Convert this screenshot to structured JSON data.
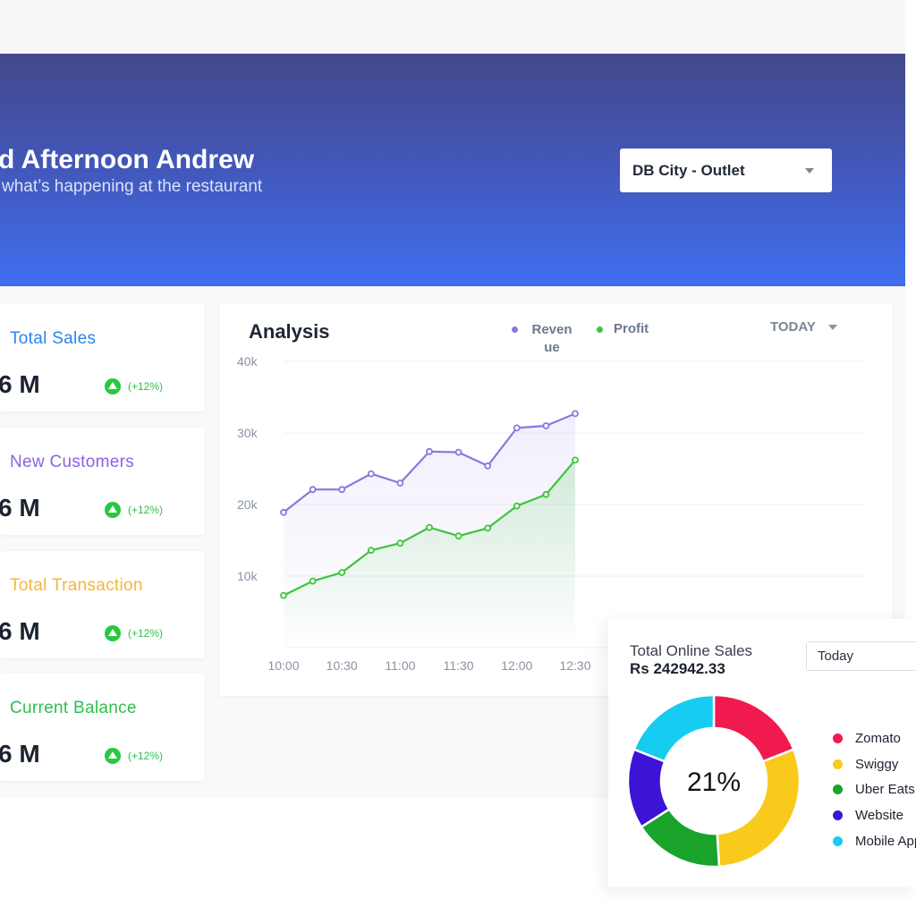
{
  "header": {
    "greeting": "d Afternoon Andrew",
    "subtitle": "what’s happening at the restaurant",
    "outlet_select": {
      "value": "DB City - Outlet"
    }
  },
  "stats": [
    {
      "label": "Total Sales",
      "value": "6 M",
      "change": "(+12%)",
      "color": "#2c82f0"
    },
    {
      "label": "New Customers",
      "value": "6 M",
      "change": "(+12%)",
      "color": "#8a63e0"
    },
    {
      "label": "Total Transaction",
      "value": "6 M",
      "change": "(+12%)",
      "color": "#f6b63d"
    },
    {
      "label": "Current Balance",
      "value": "6 M",
      "change": "(+12%)",
      "color": "#2cc04b"
    }
  ],
  "analysis": {
    "title": "Analysis",
    "legend": {
      "revenue": "Revenue",
      "profit": "Profit"
    },
    "range_select": "TODAY"
  },
  "chart_data": [
    {
      "type": "line",
      "title": "Analysis",
      "x": [
        "10:00",
        "10:15",
        "10:30",
        "10:45",
        "11:00",
        "11:15",
        "11:30",
        "11:45",
        "12:00",
        "12:15",
        "12:30"
      ],
      "x_tick_labels": [
        "10:00",
        "10:30",
        "11:00",
        "11:30",
        "12:00",
        "12:30"
      ],
      "y_tick_labels": [
        "10k",
        "20k",
        "30k",
        "40k"
      ],
      "ylim": [
        0,
        40000
      ],
      "grid": true,
      "legend_position": "top",
      "series": [
        {
          "name": "Revenue",
          "color": "#8a78e0",
          "values": [
            18900,
            22100,
            22100,
            24300,
            23000,
            27400,
            27300,
            25400,
            30700,
            31000,
            32700
          ]
        },
        {
          "name": "Profit",
          "color": "#3cc53c",
          "values": [
            7300,
            9300,
            10500,
            13600,
            14600,
            16800,
            15600,
            16700,
            19800,
            21400,
            26200
          ]
        }
      ]
    },
    {
      "type": "pie",
      "title": "Total Online Sales",
      "center_label": "21%",
      "legend_position": "right",
      "categories": [
        "Zomato",
        "Swiggy",
        "Uber Eats",
        "Website",
        "Mobile App"
      ],
      "values": [
        19,
        30,
        17,
        15,
        19
      ],
      "colors": [
        "#f01a4e",
        "#f9c91c",
        "#1aa32a",
        "#3b14d6",
        "#16ccf0"
      ]
    }
  ],
  "online_sales": {
    "title": "Total Online Sales",
    "amount": "Rs 242942.33",
    "period_select": "Today",
    "legend": [
      "Zomato",
      "Swiggy",
      "Uber Eats",
      "Website",
      "Mobile App"
    ]
  }
}
